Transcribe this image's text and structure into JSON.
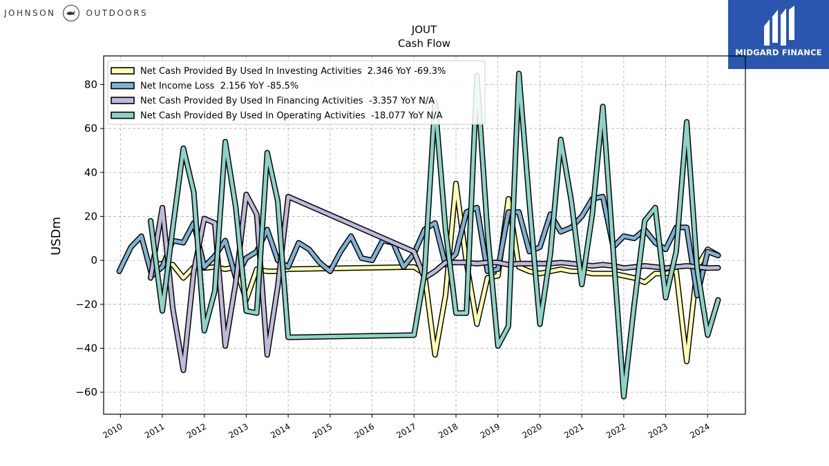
{
  "branding": {
    "left_logo_text_1": "JOHNSON",
    "left_logo_text_2": "OUTDOORS",
    "right_logo_text": "MIDGARD FINANCE",
    "right_logo_bg": "#2a56b0"
  },
  "chart_data": {
    "type": "line",
    "title": "JOUT",
    "subtitle": "Cash Flow",
    "ylabel": "USDm",
    "xlabel": "",
    "xlim": [
      2009.6,
      2024.9
    ],
    "ylim": [
      -70,
      93
    ],
    "x_ticks": [
      2010,
      2011,
      2012,
      2013,
      2014,
      2015,
      2016,
      2017,
      2018,
      2019,
      2020,
      2021,
      2022,
      2023,
      2024
    ],
    "y_ticks": [
      -60,
      -40,
      -20,
      0,
      20,
      40,
      60,
      80
    ],
    "grid": true,
    "legend_position": "top-left",
    "series": [
      {
        "name": "Net Cash Provided By Used In Investing Activities  2.346 YoY -69.3%",
        "color": "#ffffb3",
        "points": [
          [
            2010.75,
            -2
          ],
          [
            2011.0,
            -1.5
          ],
          [
            2011.25,
            -2
          ],
          [
            2011.5,
            -8
          ],
          [
            2011.75,
            -3
          ],
          [
            2012.0,
            -3.5
          ],
          [
            2012.25,
            -3
          ],
          [
            2012.5,
            -4
          ],
          [
            2012.75,
            -3
          ],
          [
            2013.0,
            -18
          ],
          [
            2013.25,
            -4
          ],
          [
            2013.5,
            -5
          ],
          [
            2013.75,
            -5
          ],
          [
            2014.0,
            -4
          ],
          [
            2017.0,
            -3
          ],
          [
            2017.25,
            -6
          ],
          [
            2017.5,
            -43
          ],
          [
            2017.75,
            -16
          ],
          [
            2018.0,
            35
          ],
          [
            2018.25,
            -1
          ],
          [
            2018.5,
            -29
          ],
          [
            2018.75,
            -8
          ],
          [
            2019.0,
            -7
          ],
          [
            2019.25,
            28
          ],
          [
            2019.5,
            -3
          ],
          [
            2019.75,
            -5
          ],
          [
            2020.0,
            -6
          ],
          [
            2020.25,
            -5
          ],
          [
            2020.5,
            -4
          ],
          [
            2020.75,
            -5
          ],
          [
            2021.0,
            -5
          ],
          [
            2021.25,
            -6
          ],
          [
            2021.5,
            -6
          ],
          [
            2021.75,
            -6
          ],
          [
            2022.0,
            -7
          ],
          [
            2022.25,
            -8
          ],
          [
            2022.5,
            -10
          ],
          [
            2022.75,
            -6
          ],
          [
            2023.0,
            -6
          ],
          [
            2023.25,
            -5
          ],
          [
            2023.5,
            -46
          ],
          [
            2023.75,
            -3
          ],
          [
            2024.0,
            5
          ],
          [
            2024.25,
            2.3
          ]
        ]
      },
      {
        "name": "Net Income Loss  2.156 YoY -85.5%",
        "color": "#80b1d3",
        "points": [
          [
            2009.97,
            -5
          ],
          [
            2010.25,
            6
          ],
          [
            2010.5,
            11
          ],
          [
            2010.75,
            -7
          ],
          [
            2011.0,
            -3
          ],
          [
            2011.25,
            9
          ],
          [
            2011.5,
            8
          ],
          [
            2011.75,
            17
          ],
          [
            2012.0,
            -3
          ],
          [
            2012.25,
            2
          ],
          [
            2012.5,
            9
          ],
          [
            2012.75,
            -8
          ],
          [
            2013.0,
            1
          ],
          [
            2013.25,
            4
          ],
          [
            2013.5,
            14
          ],
          [
            2013.75,
            0
          ],
          [
            2014.0,
            -3
          ],
          [
            2014.25,
            8
          ],
          [
            2014.5,
            5
          ],
          [
            2014.75,
            -1
          ],
          [
            2015.0,
            -5
          ],
          [
            2015.25,
            4
          ],
          [
            2015.5,
            11
          ],
          [
            2015.75,
            1
          ],
          [
            2016.0,
            0
          ],
          [
            2016.25,
            9
          ],
          [
            2016.5,
            8
          ],
          [
            2016.75,
            -3
          ],
          [
            2017.0,
            3
          ],
          [
            2017.25,
            14
          ],
          [
            2017.5,
            17
          ],
          [
            2017.75,
            -2
          ],
          [
            2018.0,
            3
          ],
          [
            2018.25,
            22
          ],
          [
            2018.5,
            24
          ],
          [
            2018.75,
            -5
          ],
          [
            2019.0,
            -4
          ],
          [
            2019.25,
            22
          ],
          [
            2019.5,
            22
          ],
          [
            2019.75,
            4
          ],
          [
            2020.0,
            6
          ],
          [
            2020.25,
            21
          ],
          [
            2020.5,
            13
          ],
          [
            2020.75,
            15
          ],
          [
            2021.0,
            20
          ],
          [
            2021.25,
            28
          ],
          [
            2021.5,
            29
          ],
          [
            2021.75,
            6
          ],
          [
            2022.0,
            11
          ],
          [
            2022.25,
            10
          ],
          [
            2022.5,
            14
          ],
          [
            2022.75,
            8
          ],
          [
            2023.0,
            5
          ],
          [
            2023.25,
            15
          ],
          [
            2023.5,
            15
          ],
          [
            2023.75,
            -16
          ],
          [
            2024.0,
            4
          ],
          [
            2024.25,
            2.2
          ]
        ]
      },
      {
        "name": "Net Cash Provided By Used In Financing Activities  -3.357 YoY N/A",
        "color": "#bebada",
        "points": [
          [
            2010.72,
            -8
          ],
          [
            2011.0,
            24
          ],
          [
            2011.25,
            -22
          ],
          [
            2011.5,
            -50
          ],
          [
            2011.75,
            -5
          ],
          [
            2012.0,
            19
          ],
          [
            2012.25,
            17
          ],
          [
            2012.5,
            -39
          ],
          [
            2012.75,
            -10
          ],
          [
            2013.0,
            30
          ],
          [
            2013.25,
            21
          ],
          [
            2013.5,
            -43
          ],
          [
            2013.75,
            -12
          ],
          [
            2014.0,
            29
          ],
          [
            2017.0,
            4
          ],
          [
            2017.25,
            -8
          ],
          [
            2017.5,
            -5
          ],
          [
            2017.75,
            -1
          ],
          [
            2018.0,
            -1
          ],
          [
            2018.25,
            -1
          ],
          [
            2018.5,
            -1.5
          ],
          [
            2018.75,
            -1
          ],
          [
            2019.0,
            -1
          ],
          [
            2019.25,
            -2
          ],
          [
            2019.5,
            -1.5
          ],
          [
            2019.75,
            -1.5
          ],
          [
            2020.0,
            -1.5
          ],
          [
            2020.25,
            -1.5
          ],
          [
            2020.5,
            -1
          ],
          [
            2020.75,
            -1.5
          ],
          [
            2021.0,
            -2
          ],
          [
            2021.25,
            -2.5
          ],
          [
            2021.5,
            -2
          ],
          [
            2021.75,
            -2.5
          ],
          [
            2022.0,
            -3.5
          ],
          [
            2022.25,
            -3
          ],
          [
            2022.5,
            -2.5
          ],
          [
            2022.75,
            -3
          ],
          [
            2023.0,
            -3.5
          ],
          [
            2023.25,
            -3
          ],
          [
            2023.5,
            -2.5
          ],
          [
            2023.75,
            -3
          ],
          [
            2024.0,
            -3.5
          ],
          [
            2024.25,
            -3.4
          ]
        ]
      },
      {
        "name": "Net Cash Provided By Used In Operating Activities  -18.077 YoY N/A",
        "color": "#8dd3c7",
        "points": [
          [
            2010.72,
            18
          ],
          [
            2011.0,
            -23
          ],
          [
            2011.25,
            15
          ],
          [
            2011.5,
            51
          ],
          [
            2011.75,
            31
          ],
          [
            2012.0,
            -32
          ],
          [
            2012.25,
            -14
          ],
          [
            2012.5,
            54
          ],
          [
            2012.75,
            24
          ],
          [
            2013.0,
            -23
          ],
          [
            2013.25,
            -24
          ],
          [
            2013.5,
            49
          ],
          [
            2013.75,
            27
          ],
          [
            2014.0,
            -35
          ],
          [
            2017.0,
            -34
          ],
          [
            2017.25,
            -6
          ],
          [
            2017.5,
            72
          ],
          [
            2017.75,
            14
          ],
          [
            2018.0,
            -24
          ],
          [
            2018.25,
            -24
          ],
          [
            2018.5,
            84
          ],
          [
            2018.75,
            13
          ],
          [
            2019.0,
            -39
          ],
          [
            2019.25,
            -30
          ],
          [
            2019.5,
            85
          ],
          [
            2019.75,
            26
          ],
          [
            2020.0,
            -29
          ],
          [
            2020.25,
            3
          ],
          [
            2020.5,
            55
          ],
          [
            2020.75,
            27
          ],
          [
            2021.0,
            -11
          ],
          [
            2021.25,
            21
          ],
          [
            2021.5,
            70
          ],
          [
            2021.75,
            4
          ],
          [
            2022.0,
            -62
          ],
          [
            2022.25,
            -20
          ],
          [
            2022.5,
            18
          ],
          [
            2022.75,
            24
          ],
          [
            2023.0,
            -17
          ],
          [
            2023.25,
            4
          ],
          [
            2023.5,
            63
          ],
          [
            2023.75,
            -4
          ],
          [
            2024.0,
            -34
          ],
          [
            2024.25,
            -18
          ]
        ]
      }
    ]
  }
}
